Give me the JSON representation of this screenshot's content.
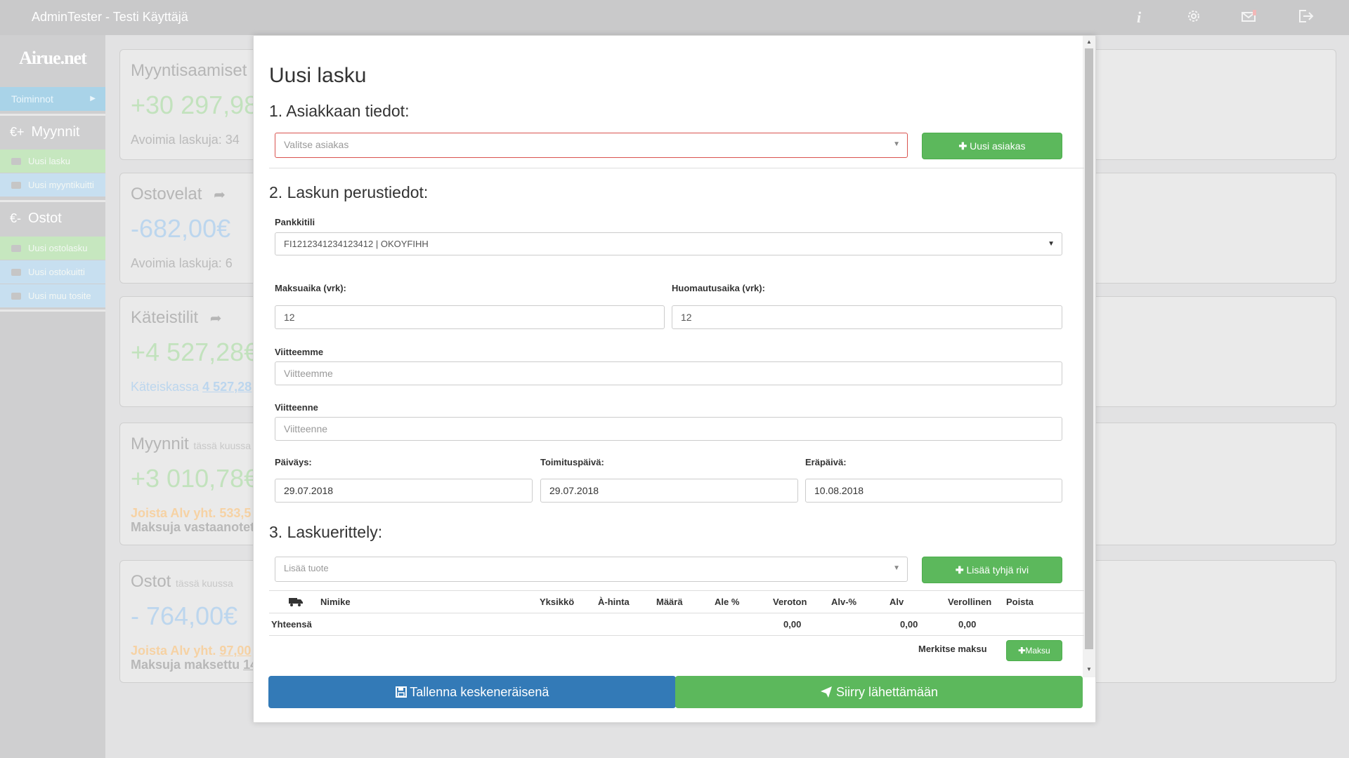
{
  "topbar": {
    "title": "AdminTester - Testi Käyttäjä",
    "icons": [
      "info-icon",
      "gear-icon",
      "mail-icon",
      "logout-icon"
    ]
  },
  "sidebar": {
    "logo": "Airue.net",
    "toiminnot": "Toiminnot",
    "myynnit": {
      "symbol": "€+",
      "label": "Myynnit"
    },
    "myynnit_items": [
      "Uusi lasku",
      "Uusi myyntikuitti"
    ],
    "ostot": {
      "symbol": "€-",
      "label": "Ostot"
    },
    "ostot_items": [
      "Uusi ostolasku",
      "Uusi ostokuitti",
      "Uusi muu tosite"
    ]
  },
  "cards": [
    {
      "title": "Myyntisaamiset",
      "amount": "+30 297,98",
      "sub": "Avoimia laskuja: 34"
    },
    {
      "title": "Ostovelat",
      "amount": "-682,00€",
      "sub": "Avoimia laskuja: 6"
    },
    {
      "title": "Käteistilit",
      "amount": "+4 527,28€",
      "sub": "Käteiskassa",
      "sub_link": "4 527,28"
    },
    {
      "title": "Myynnit",
      "title_small": "tässä kuussa",
      "amount": "+3 010,78€",
      "sub": "Joista Alv yht.",
      "sub_val": "533,5",
      "sub2": "Maksuja vastaanotet"
    },
    {
      "title": "Ostot",
      "title_small": "tässä kuussa",
      "amount": "- 764,00€",
      "sub": "Joista Alv yht.",
      "sub_val": "97,00",
      "sub2": "Maksuja maksettu",
      "sub2_link": "14"
    }
  ],
  "colors": {
    "positive": "#c2e2bd",
    "negative": "#bcd6ee",
    "warning": "#f6d2a4",
    "link": "#bcd6ee",
    "green_btn": "#5cb85c",
    "blue_btn": "#337ab7"
  },
  "modal": {
    "title": "Uusi lasku",
    "section1": "1. Asiakkaan tiedot:",
    "customer_placeholder": "Valitse asiakas",
    "new_customer_btn": "Uusi asiakas",
    "section2": "2. Laskun perustiedot:",
    "bank_label": "Pankkitili",
    "bank_value": "FI1212341234123412 | OKOYFIHH",
    "maksuaika_label": "Maksuaika (vrk):",
    "maksuaika_value": "12",
    "huomautus_label": "Huomautusaika (vrk):",
    "huomautus_value": "12",
    "viitteemme_label": "Viitteemme",
    "viitteemme_placeholder": "Viitteemme",
    "viitteenne_label": "Viitteenne",
    "viitteenne_placeholder": "Viitteenne",
    "paivays_label": "Päiväys:",
    "paivays_value": "29.07.2018",
    "toimitus_label": "Toimituspäivä:",
    "toimitus_value": "29.07.2018",
    "erapaiva_label": "Eräpäivä:",
    "erapaiva_value": "10.08.2018",
    "section3": "3. Laskuerittely:",
    "product_placeholder": "Lisää tuote",
    "add_row_btn": "Lisää tyhjä rivi",
    "table_headers": [
      "Nimike",
      "Yksikkö",
      "À-hinta",
      "Määrä",
      "Ale %",
      "Veroton",
      "Alv-%",
      "Alv",
      "Verollinen",
      "Poista"
    ],
    "total_label": "Yhteensä",
    "total_veroton": "0,00",
    "total_alv": "0,00",
    "total_verollinen": "0,00",
    "payment_label": "Merkitse maksu",
    "payment_btn": "Maksu",
    "save_btn": "Tallenna keskeneräisenä",
    "send_btn": "Siirry lähettämään"
  }
}
